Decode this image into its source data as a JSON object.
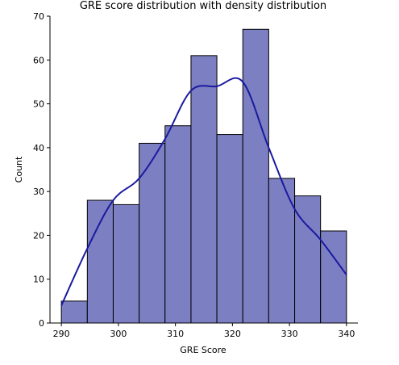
{
  "chart_data": {
    "type": "histogram",
    "title": "GRE score distribution with density distribution",
    "xlabel": "GRE Score",
    "ylabel": "Count",
    "xlim": [
      288,
      342
    ],
    "ylim": [
      0,
      70
    ],
    "x_ticks": [
      290,
      300,
      310,
      320,
      330,
      340
    ],
    "y_ticks": [
      0,
      10,
      20,
      30,
      40,
      50,
      60,
      70
    ],
    "bin_edges": [
      290,
      294.55,
      299.09,
      303.64,
      308.18,
      312.73,
      317.27,
      321.82,
      326.36,
      330.91,
      335.45,
      340
    ],
    "values": [
      5,
      28,
      27,
      41,
      45,
      61,
      43,
      67,
      33,
      29,
      21
    ],
    "kde": {
      "x": [
        290,
        294.55,
        299.09,
        303.64,
        308.18,
        312.73,
        317.27,
        321.82,
        326.36,
        330.91,
        335.45,
        340
      ],
      "y": [
        4,
        17,
        28,
        33,
        42,
        53,
        54,
        55,
        40,
        26,
        19,
        11
      ]
    },
    "grid": false,
    "colors": {
      "bar_fill": "#7c7fc2",
      "bar_edge": "#000000",
      "kde_line": "#1a1aa0",
      "axis": "#000000"
    }
  }
}
